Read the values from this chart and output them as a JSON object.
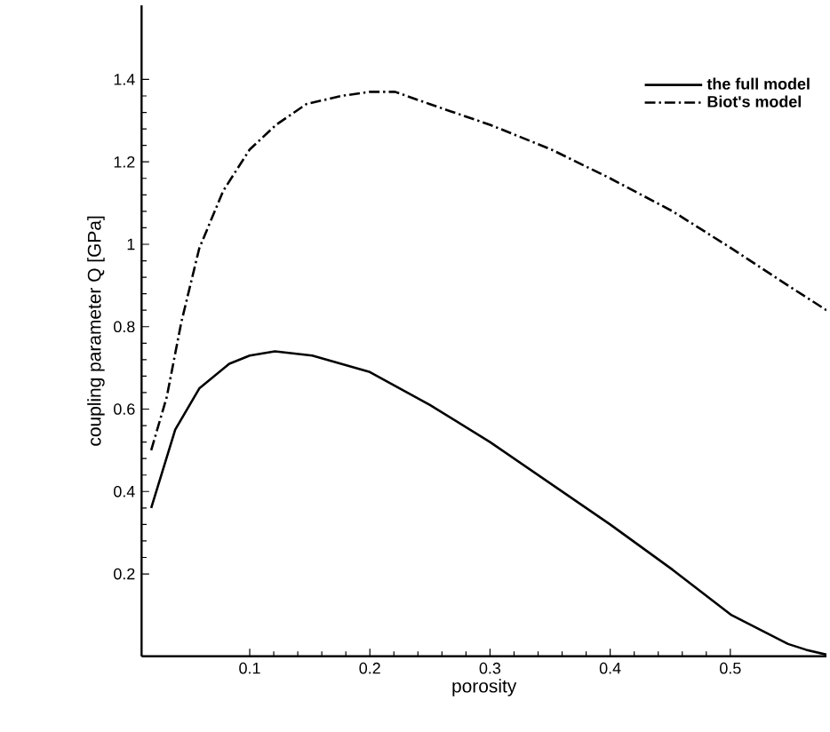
{
  "chart_data": {
    "type": "line",
    "xlabel": "porosity",
    "ylabel": "coupling parameter Q [GPa]",
    "xlim": [
      0.01,
      0.58
    ],
    "ylim": [
      0,
      1.58
    ],
    "xticks": [
      0.1,
      0.2,
      0.3,
      0.4,
      0.5
    ],
    "yticks": [
      0.2,
      0.4,
      0.6,
      0.8,
      1,
      1.2,
      1.4
    ],
    "legend": "top right",
    "grid": false,
    "marker": "none",
    "series": [
      {
        "name": "the full model",
        "color": "#000000",
        "line_style": "solid",
        "x": [
          0.018,
          0.038,
          0.058,
          0.083,
          0.1,
          0.121,
          0.152,
          0.2,
          0.25,
          0.3,
          0.35,
          0.4,
          0.452,
          0.501,
          0.548,
          0.563,
          0.58
        ],
        "values": [
          0.36,
          0.55,
          0.65,
          0.71,
          0.73,
          0.74,
          0.73,
          0.69,
          0.61,
          0.52,
          0.42,
          0.32,
          0.21,
          0.1,
          0.03,
          0.016,
          0.004
        ]
      },
      {
        "name": "Biot's model",
        "color": "#000000",
        "line_style": "dashed",
        "x": [
          0.018,
          0.031,
          0.043,
          0.058,
          0.078,
          0.1,
          0.122,
          0.147,
          0.176,
          0.2,
          0.221,
          0.25,
          0.3,
          0.351,
          0.4,
          0.452,
          0.501,
          0.548,
          0.58
        ],
        "values": [
          0.5,
          0.63,
          0.81,
          0.99,
          1.13,
          1.23,
          1.29,
          1.34,
          1.36,
          1.37,
          1.37,
          1.34,
          1.29,
          1.23,
          1.16,
          1.08,
          0.99,
          0.9,
          0.84
        ]
      }
    ]
  }
}
